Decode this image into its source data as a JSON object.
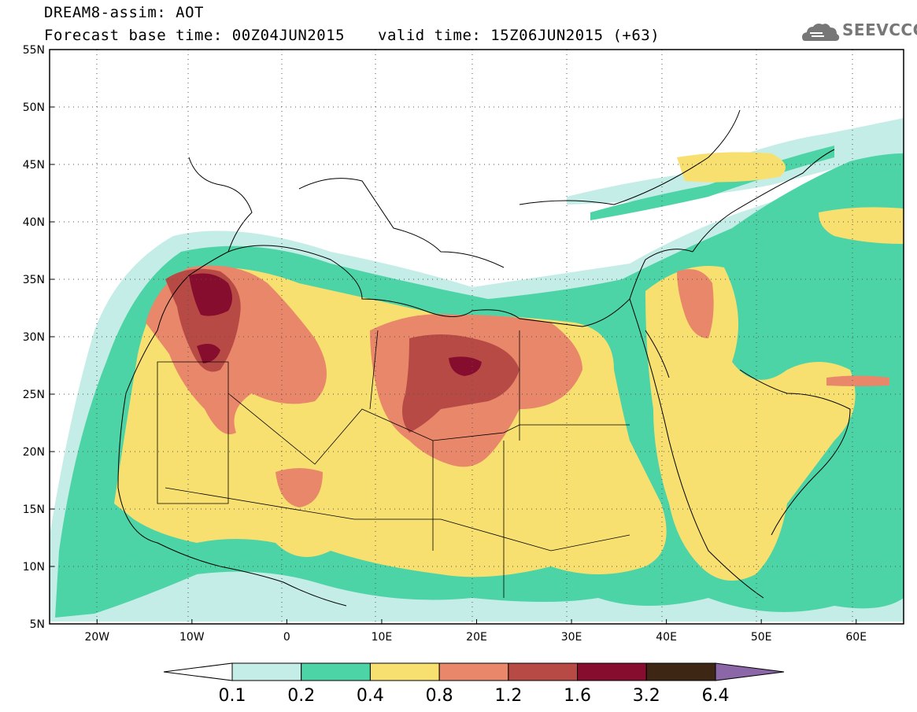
{
  "header": {
    "line1": "DREAM8-assim: AOT",
    "line2": "Forecast base time: 00Z04JUN2015",
    "valid": "valid time: 15Z06JUN2015 (+63)",
    "logo_text": "SEEVCCC"
  },
  "map": {
    "lon_range": [
      -25,
      65
    ],
    "lat_range": [
      5,
      55
    ],
    "lat_labels": [
      "55N",
      "50N",
      "45N",
      "40N",
      "35N",
      "30N",
      "25N",
      "20N",
      "15N",
      "10N",
      "5N"
    ],
    "lat_values": [
      55,
      50,
      45,
      40,
      35,
      30,
      25,
      20,
      15,
      10,
      5
    ],
    "lon_labels": [
      "20W",
      "10W",
      "0",
      "10E",
      "20E",
      "30E",
      "40E",
      "50E",
      "60E"
    ],
    "lon_values": [
      -20,
      -10,
      0,
      10,
      20,
      30,
      40,
      50,
      60
    ],
    "gridlines": "dotted"
  },
  "colorbar": {
    "colors": [
      "#ffffff",
      "#c4ede7",
      "#4dd4a6",
      "#f7e070",
      "#e8876a",
      "#b84a45",
      "#870d2e",
      "#3d2614",
      "#8c67a8"
    ],
    "labels": [
      "0.1",
      "0.2",
      "0.4",
      "0.8",
      "1.2",
      "1.6",
      "3.2",
      "6.4"
    ]
  },
  "legend_colors": {
    "land_line": "#000000",
    "sea": "#ffffff"
  }
}
